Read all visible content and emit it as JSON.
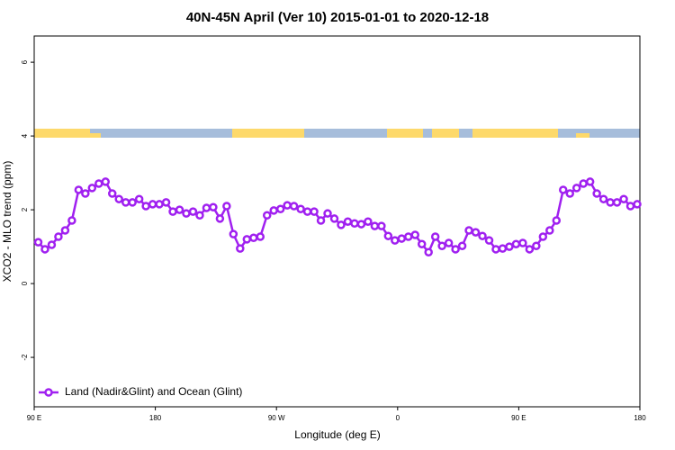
{
  "chart_data": {
    "type": "line",
    "title": "40N-45N April (Ver 10)   2015-01-01 to 2020-12-18",
    "x_label": "Longitude (deg E)",
    "y_label": "XCO2 - MLO trend (ppm)",
    "xlim": [
      90,
      540
    ],
    "ylim": [
      -3.34,
      6.71
    ],
    "xticks": [
      {
        "value": 90,
        "label": "90 E"
      },
      180,
      {
        "value": 270,
        "label": "90 W"
      },
      {
        "value": 360,
        "label": "0"
      },
      {
        "value": 450,
        "label": "90 E"
      },
      {
        "value": 540,
        "label": "180"
      }
    ],
    "yticks": [
      -2,
      0,
      2,
      4,
      6
    ],
    "legend_position": "bottom-left",
    "x": [
      93,
      98,
      103,
      108,
      113,
      118,
      123,
      128,
      133,
      138,
      143,
      148,
      153,
      158,
      163,
      168,
      173,
      178,
      183,
      188,
      193,
      198,
      203,
      208,
      213,
      218,
      223,
      228,
      233,
      238,
      243,
      248,
      253,
      258,
      263,
      268,
      273,
      278,
      283,
      288,
      293,
      298,
      303,
      308,
      313,
      318,
      323,
      328,
      333,
      338,
      343,
      348,
      353,
      358,
      363,
      368,
      373,
      378,
      383,
      388,
      393,
      398,
      403,
      408,
      413,
      418,
      423,
      428,
      433,
      438,
      443,
      448,
      453,
      458,
      463,
      468,
      473,
      478,
      483,
      488,
      493,
      498,
      503,
      508,
      513,
      518,
      523,
      528,
      533,
      538
    ],
    "series": [
      {
        "name": "Land (Nadir&Glint) and Ocean (Glint)",
        "color": "#a020f0",
        "values": [
          1.12,
          0.93,
          1.05,
          1.27,
          1.44,
          1.71,
          2.54,
          2.44,
          2.59,
          2.71,
          2.76,
          2.44,
          2.29,
          2.2,
          2.2,
          2.29,
          2.1,
          2.15,
          2.15,
          2.2,
          1.95,
          2.0,
          1.9,
          1.95,
          1.85,
          2.05,
          2.07,
          1.76,
          2.1,
          1.34,
          0.95,
          1.2,
          1.24,
          1.27,
          1.85,
          1.98,
          2.02,
          2.12,
          2.1,
          2.02,
          1.95,
          1.95,
          1.71,
          1.9,
          1.76,
          1.59,
          1.68,
          1.63,
          1.61,
          1.68,
          1.56,
          1.56,
          1.29,
          1.17,
          1.22,
          1.27,
          1.32,
          1.07,
          0.85,
          1.27,
          1.02,
          1.1,
          0.93,
          1.02,
          1.44,
          1.39,
          1.29,
          1.17,
          0.93,
          0.95,
          1.0,
          1.07,
          1.1,
          0.93,
          1.02,
          1.27,
          1.44,
          1.71,
          2.54,
          2.44,
          2.59,
          2.71,
          2.76,
          2.44,
          2.29,
          2.2,
          2.2,
          2.29,
          2.1,
          2.15
        ]
      }
    ]
  }
}
